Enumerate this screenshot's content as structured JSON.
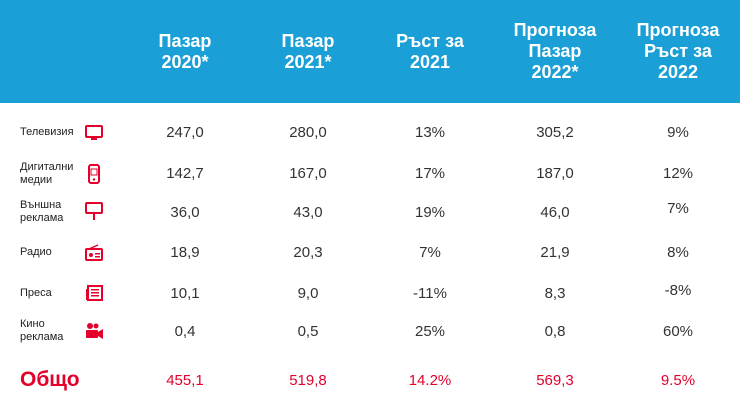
{
  "colors": {
    "header_bg": "#1aa0d6",
    "accent_red": "#e4002b",
    "text": "#333333"
  },
  "chart_data": {
    "type": "table",
    "columns": [
      "Пазар\n2020*",
      "Пазар\n2021*",
      "Ръст за\n2021",
      "Прогноза\nПазар\n2022*",
      "Прогноза\nРъст за\n2022"
    ],
    "rows": [
      {
        "label": "Телевизия",
        "icon": "tv-icon",
        "values": [
          "247,0",
          "280,0",
          "13%",
          "305,2",
          "9%"
        ]
      },
      {
        "label": "Дигитални\nмедии",
        "icon": "mobile-phone-icon",
        "values": [
          "142,7",
          "167,0",
          "17%",
          "187,0",
          "12%"
        ]
      },
      {
        "label": "Външна\nреклама",
        "icon": "billboard-icon",
        "values": [
          "36,0",
          "43,0",
          "19%",
          "46,0",
          "7%"
        ]
      },
      {
        "label": "Радио",
        "icon": "radio-icon",
        "values": [
          "18,9",
          "20,3",
          "7%",
          "21,9",
          "8%"
        ]
      },
      {
        "label": "Преса",
        "icon": "newspaper-icon",
        "values": [
          "10,1",
          "9,0",
          "-11%",
          "8,3",
          "-8%"
        ]
      },
      {
        "label": "Кино\nреклама",
        "icon": "movie-camera-icon",
        "values": [
          "0,4",
          "0,5",
          "25%",
          "0,8",
          "60%"
        ]
      }
    ],
    "total": {
      "label": "Общо",
      "values": [
        "455,1",
        "519,8",
        "14.2%",
        "569,3",
        "9.5%"
      ]
    }
  }
}
